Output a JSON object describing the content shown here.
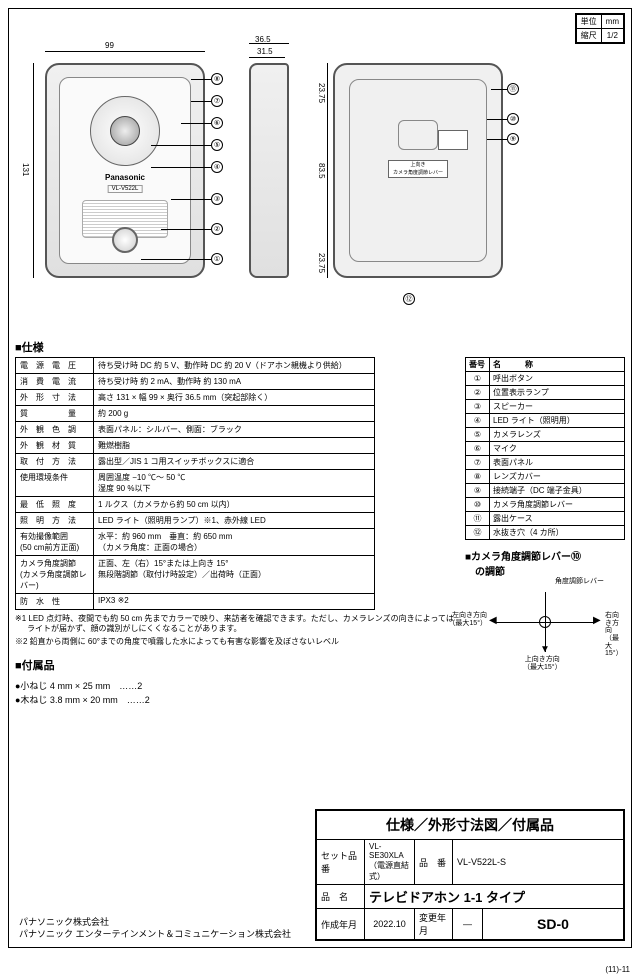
{
  "units": {
    "unit_label": "単位",
    "unit_val": "mm",
    "scale_label": "縮尺",
    "scale_val": "1/2"
  },
  "dims": {
    "w_front": "99",
    "h_front": "131",
    "d_side": "36.5",
    "d_side2": "31.5",
    "back_top": "23.75",
    "back_mid": "83.5",
    "back_bot": "23.75"
  },
  "brand": "Panasonic",
  "model_front": "VL-V522L",
  "angle_lever_text": "上向き\nカメラ角度調節レバー",
  "callouts_front": [
    "①",
    "②",
    "③",
    "④",
    "⑤",
    "⑥",
    "⑦",
    "⑧"
  ],
  "callouts_back": [
    "⑨",
    "⑩",
    "⑪",
    "⑫"
  ],
  "sections": {
    "spec": "■仕様",
    "accessories": "■付属品",
    "angle": "■カメラ角度調節レバー⑩\n　の調節"
  },
  "spec_rows": [
    [
      "電　源　電　圧",
      "待ち受け時 DC 約 5 V、動作時 DC 約 20 V（ドアホン親機より供給）"
    ],
    [
      "消　費　電　流",
      "待ち受け時 約 2 mA、動作時 約 130 mA"
    ],
    [
      "外　形　寸　法",
      "高さ 131 × 幅 99 × 奥行 36.5 mm（突起部除く）"
    ],
    [
      "質　　　　　量",
      "約 200 g"
    ],
    [
      "外　観　色　調",
      "表面パネル：シルバー、側面：ブラック"
    ],
    [
      "外　観　材　質",
      "難燃樹脂"
    ],
    [
      "取　付　方　法",
      "露出型／JIS 1 コ用スイッチボックスに適合"
    ],
    [
      "使用環境条件",
      "周囲温度 −10 ℃〜 50 ℃\n湿度 90 %以下"
    ],
    [
      "最　低　照　度",
      "1 ルクス（カメラから約 50 cm 以内）"
    ],
    [
      "照　明　方　法",
      "LED ライト（照明用ランプ）※1、赤外線 LED"
    ],
    [
      "有効撮像範囲\n(50 cm前方正面)",
      "水平：約 960 mm　垂直：約 650 mm\n（カメラ角度：正面の場合）"
    ],
    [
      "カメラ角度調節\n(カメラ角度調節レバー)",
      "正面、左（右）15°または上向き 15°\n無段階調節（取付け時設定）／出荷時（正面）"
    ],
    [
      "防　水　性",
      "IPX3 ※2"
    ]
  ],
  "parts_header": [
    "番号",
    "名　　　称"
  ],
  "parts_rows": [
    [
      "①",
      "呼出ボタン"
    ],
    [
      "②",
      "位置表示ランプ"
    ],
    [
      "③",
      "スピーカー"
    ],
    [
      "④",
      "LED ライト（照明用）"
    ],
    [
      "⑤",
      "カメラレンズ"
    ],
    [
      "⑥",
      "マイク"
    ],
    [
      "⑦",
      "表面パネル"
    ],
    [
      "⑧",
      "レンズカバー"
    ],
    [
      "⑨",
      "接続端子（DC 端子金具）"
    ],
    [
      "⑩",
      "カメラ角度調節レバー"
    ],
    [
      "⑪",
      "露出ケース"
    ],
    [
      "⑫",
      "水抜き穴（4 カ所）"
    ]
  ],
  "notes": [
    "※1 LED 点灯時、夜間でも約 50 cm 先までカラーで映り、来訪者を確認できます。ただし、カメラレンズの向きによってはライトが届かず、顔の識別がしにくくなることがあります。",
    "※2 鉛直から両側に 60°までの角度で噴霧した水によっても有害な影響を及ぼさないレベル"
  ],
  "accessories": [
    "●小ねじ 4 mm × 25 mm　……2",
    "●木ねじ 3.8 mm × 20 mm　……2"
  ],
  "angle_labels": {
    "top": "角度調節レバー",
    "left": "左向き方向\n（最大15°）",
    "right": "右向き方向\n（最大15°）",
    "bottom": "上向き方向\n（最大15°）"
  },
  "title_block": {
    "main": "仕様／外形寸法図／付属品",
    "set_label": "セット品番",
    "set_val": "VL-SE30XLA（電源直結式）",
    "model_label": "品　番",
    "model_val": "VL-V522L-S",
    "name_label": "品　名",
    "name_val": "テレビドアホン 1-1 タイプ",
    "created_label": "作成年月",
    "created_val": "2022.10",
    "changed_label": "変更年月",
    "changed_val": "—",
    "sd": "SD-0"
  },
  "company": [
    "パナソニック株式会社",
    "パナソニック エンターテインメント＆コミュニケーション株式会社"
  ],
  "page_num": "(11)-11",
  "colors": {
    "border": "#000000",
    "device_body": "#e8e8e8",
    "text": "#000000"
  }
}
